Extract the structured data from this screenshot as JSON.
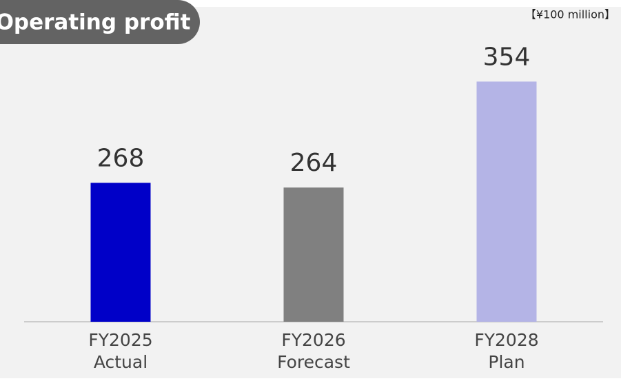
{
  "chart_data": {
    "type": "bar",
    "title": "Operating profit",
    "unit": "【¥100 million】",
    "categories": [
      [
        "FY2025",
        "Actual"
      ],
      [
        "FY2026",
        "Forecast"
      ],
      [
        "FY2028",
        "Plan"
      ]
    ],
    "values": [
      268,
      264,
      354
    ],
    "colors": [
      "#0000c8",
      "#808080",
      "#b4b4e6"
    ],
    "ylim": [
      150,
      380
    ]
  }
}
